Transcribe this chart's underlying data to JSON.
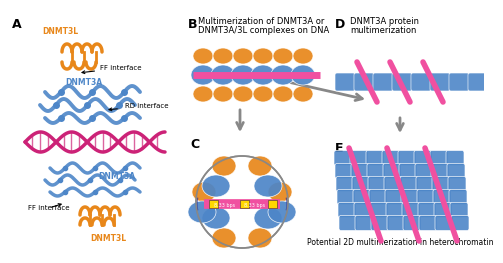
{
  "panel_A_label": "A",
  "panel_B_label": "B",
  "panel_C_label": "C",
  "panel_D_label": "D",
  "panel_E_label": "E",
  "panel_B_title_line1": "Multimerization of DNMT3A or",
  "panel_B_title_line2": "DNMT3A/3L complexes on DNA",
  "panel_D_title_line1": "DNMT3A protein",
  "panel_D_title_line2": "multimerization",
  "panel_E_bottom_text": "Potential 2D multimerization in heterochromatin",
  "dnmt3l_label_top": "DNMT3L",
  "dnmt3a_label_top": "DNMT3A",
  "dnmt3a_label_mid": "DNMT3A",
  "dnmt3l_label_bot": "DNMT3L",
  "ff_interface_top": "FF interface",
  "rd_interface": "RD interface",
  "ff_interface_bot": "FF interface",
  "orange": "#E8871A",
  "blue": "#4D86C8",
  "pink": "#CC2277",
  "hotpink": "#F050A0",
  "yellow": "#FFD700",
  "gray": "#888888",
  "bg": "#FFFFFF"
}
